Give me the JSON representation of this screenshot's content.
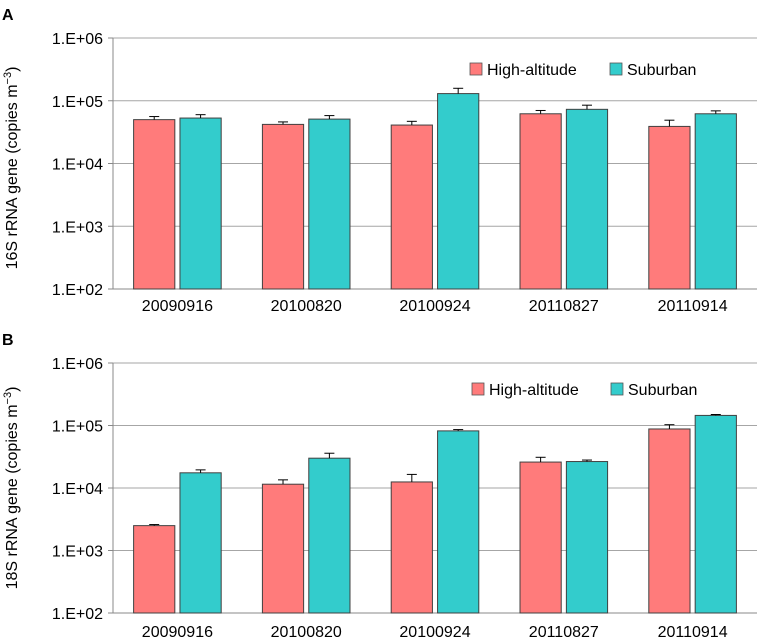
{
  "chart_data": [
    {
      "type": "bar",
      "panel": "A",
      "ylabel": "16S rRNA gene (copies m",
      "ylabel_sup": "−3",
      "ylabel_close": ")",
      "yscale": "log",
      "ylim": [
        100,
        1000000
      ],
      "yticks": [
        100,
        1000,
        10000,
        100000,
        1000000
      ],
      "ytick_labels": [
        "1.E+02",
        "1.E+03",
        "1.E+04",
        "1.E+05",
        "1.E+06"
      ],
      "grid": true,
      "legend_position": "top-right",
      "categories": [
        "20090916",
        "20100820",
        "20100924",
        "20110827",
        "20110914"
      ],
      "series": [
        {
          "name": "High-altitude",
          "color": "#FF7B7B",
          "values": [
            50000,
            42000,
            41000,
            62000,
            39000
          ],
          "errors": [
            6000,
            4000,
            6000,
            8000,
            10000
          ]
        },
        {
          "name": "Suburban",
          "color": "#33CCCC",
          "values": [
            53000,
            51000,
            130000,
            73000,
            62000
          ],
          "errors": [
            7000,
            7000,
            28000,
            12000,
            7000
          ]
        }
      ]
    },
    {
      "type": "bar",
      "panel": "B",
      "ylabel": "18S rRNA gene (copies m",
      "ylabel_sup": "−3",
      "ylabel_close": ")",
      "yscale": "log",
      "ylim": [
        100,
        1000000
      ],
      "yticks": [
        100,
        1000,
        10000,
        100000,
        1000000
      ],
      "ytick_labels": [
        "1.E+02",
        "1.E+03",
        "1.E+04",
        "1.E+05",
        "1.E+06"
      ],
      "grid": true,
      "legend_position": "top-right",
      "categories": [
        "20090916",
        "20100820",
        "20100924",
        "20110827",
        "20110914"
      ],
      "series": [
        {
          "name": "High-altitude",
          "color": "#FF7B7B",
          "values": [
            2500,
            11500,
            12500,
            26000,
            88000
          ],
          "errors": [
            100,
            2000,
            4000,
            5000,
            15000
          ]
        },
        {
          "name": "Suburban",
          "color": "#33CCCC",
          "values": [
            17500,
            30000,
            82000,
            26500,
            145000
          ],
          "errors": [
            2000,
            6000,
            4000,
            1500,
            5000
          ]
        }
      ]
    }
  ]
}
